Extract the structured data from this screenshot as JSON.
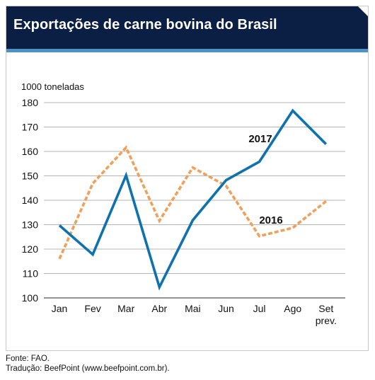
{
  "chart_data": {
    "type": "line",
    "title": "Exportações de carne bovina do Brasil",
    "ylabel": "1000 toneladas",
    "xlabel": "",
    "categories": [
      "Jan",
      "Fev",
      "Mar",
      "Abr",
      "Mai",
      "Jun",
      "Jul",
      "Ago",
      "Set\nprev."
    ],
    "category_labels": [
      [
        "Jan"
      ],
      [
        "Fev"
      ],
      [
        "Mar"
      ],
      [
        "Abr"
      ],
      [
        "Mai"
      ],
      [
        "Jun"
      ],
      [
        "Jul"
      ],
      [
        "Ago"
      ],
      [
        "Set",
        "prev."
      ]
    ],
    "ylim": [
      100,
      180
    ],
    "yticks": [
      100,
      110,
      120,
      130,
      140,
      150,
      160,
      170,
      180
    ],
    "grid": true,
    "series": [
      {
        "name": "2017",
        "color": "#0e72ae",
        "style": "solid",
        "values": [
          129.7,
          117.8,
          150.2,
          104.4,
          131.8,
          148.2,
          155.8,
          176.7,
          163.0
        ]
      },
      {
        "name": "2016",
        "color": "#f0a05a",
        "style": "dashed",
        "values": [
          116.0,
          146.9,
          161.6,
          131.6,
          153.4,
          145.9,
          125.3,
          128.7,
          139.6
        ]
      }
    ]
  },
  "footer": {
    "source": "Fonte: FAO.",
    "translation": "Tradução: BeefPoint (www.beefpoint.com.br)."
  }
}
